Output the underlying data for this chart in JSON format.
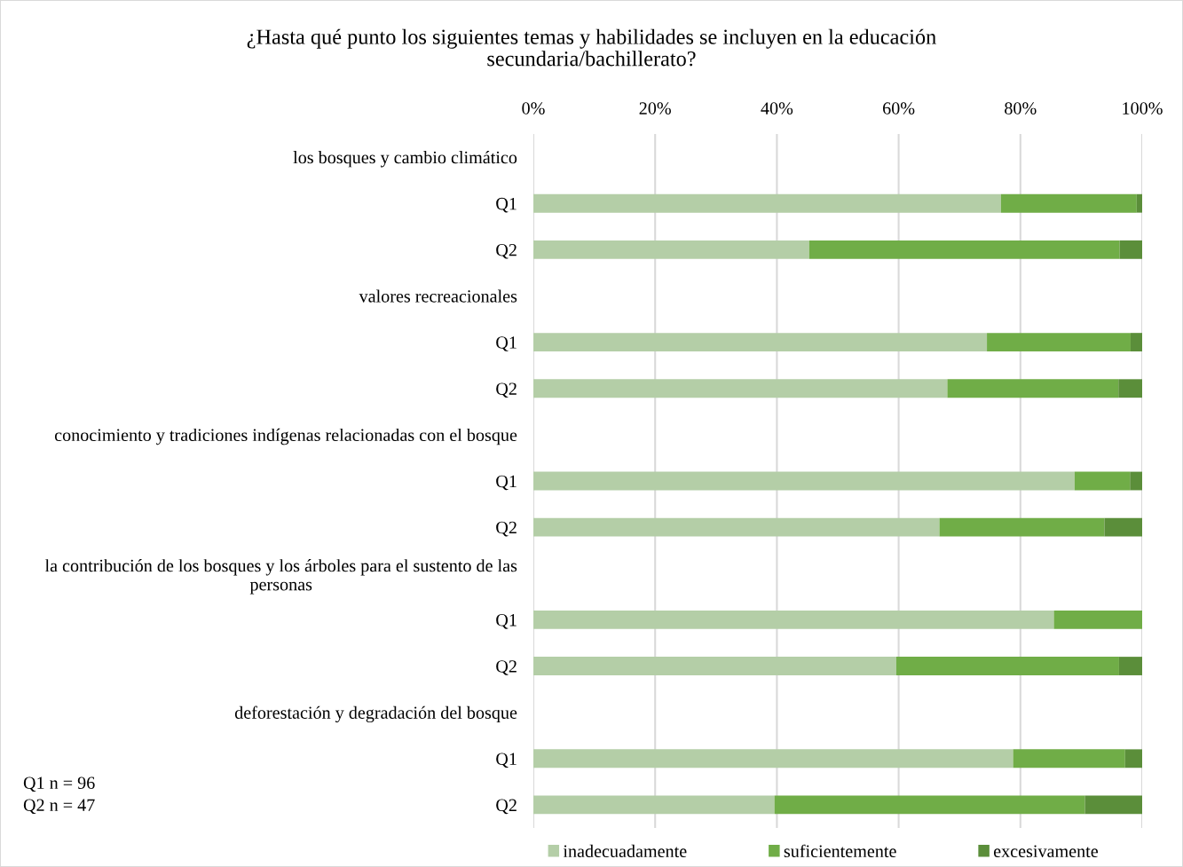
{
  "chart_data": {
    "type": "bar",
    "orientation": "horizontal",
    "stacked": true,
    "title": "¿Hasta qué punto los siguientes temas y habilidades se incluyen en la educación\nsecundaria/bachillerato?",
    "categories": [
      "los bosques y cambio climático",
      "Q1",
      "Q2",
      "valores recreacionales",
      "Q1",
      "Q2",
      "conocimiento y tradiciones indígenas relacionadas con el bosque",
      "Q1",
      "Q2",
      "la contribución de los bosques y los árboles para el sustento de las\npersonas",
      "Q1",
      "Q2",
      "deforestación y degradación del bosque",
      "Q1",
      "Q2"
    ],
    "series": [
      {
        "name": "inadecuadamente",
        "color": "#b4cea7",
        "values": [
          null,
          76.8,
          45.3,
          null,
          74.5,
          68.0,
          null,
          88.9,
          66.7,
          null,
          85.5,
          59.6,
          null,
          78.8,
          39.6
        ]
      },
      {
        "name": "suficientemente",
        "color": "#70ad47",
        "values": [
          null,
          22.3,
          51.0,
          null,
          23.6,
          28.1,
          null,
          9.1,
          27.1,
          null,
          14.5,
          36.6,
          null,
          18.4,
          51.0
        ]
      },
      {
        "name": "excesivamente",
        "color": "#5b8e3a",
        "values": [
          null,
          0.9,
          3.7,
          null,
          1.9,
          3.9,
          null,
          2.0,
          6.2,
          null,
          0,
          3.8,
          null,
          2.8,
          9.4
        ]
      }
    ],
    "xlim": [
      0,
      100
    ],
    "xticks": [
      {
        "value": 0,
        "label": "0%"
      },
      {
        "value": 20,
        "label": "20%"
      },
      {
        "value": 40,
        "label": "40%"
      },
      {
        "value": 60,
        "label": "60%"
      },
      {
        "value": 80,
        "label": "80%"
      },
      {
        "value": 100,
        "label": "100%"
      }
    ],
    "grid": "x",
    "legend": "bottom",
    "annotations": [
      "Q1 n = 96",
      "Q2 n = 47"
    ]
  }
}
